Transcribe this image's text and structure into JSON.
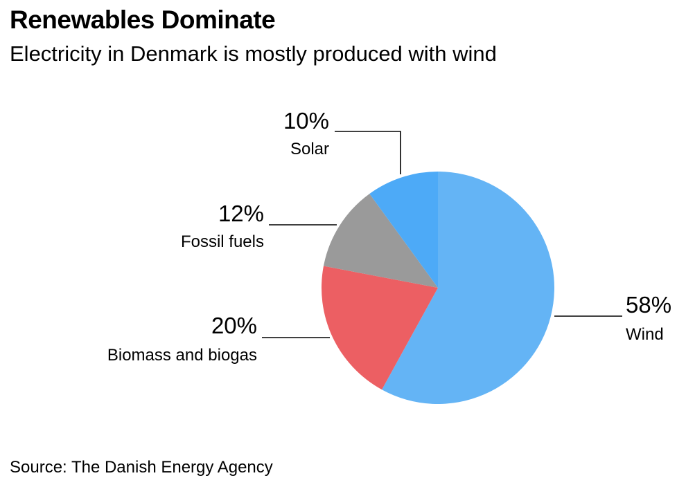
{
  "chart_data": {
    "type": "pie",
    "title": "Renewables Dominate",
    "subtitle": "Electricity in Denmark is mostly produced with wind",
    "source": "Source: The Danish Energy Agency",
    "slices": [
      {
        "label": "Wind",
        "value": 58,
        "value_label": "58%",
        "color": "#64b4f5"
      },
      {
        "label": "Biomass and biogas",
        "value": 20,
        "value_label": "20%",
        "color": "#ec5f63"
      },
      {
        "label": "Fossil fuels",
        "value": 12,
        "value_label": "12%",
        "color": "#9a9a9a"
      },
      {
        "label": "Solar",
        "value": 10,
        "value_label": "10%",
        "color": "#4daaf7"
      }
    ],
    "start_angle_deg": 0,
    "direction": "clockwise",
    "legend": "none"
  }
}
